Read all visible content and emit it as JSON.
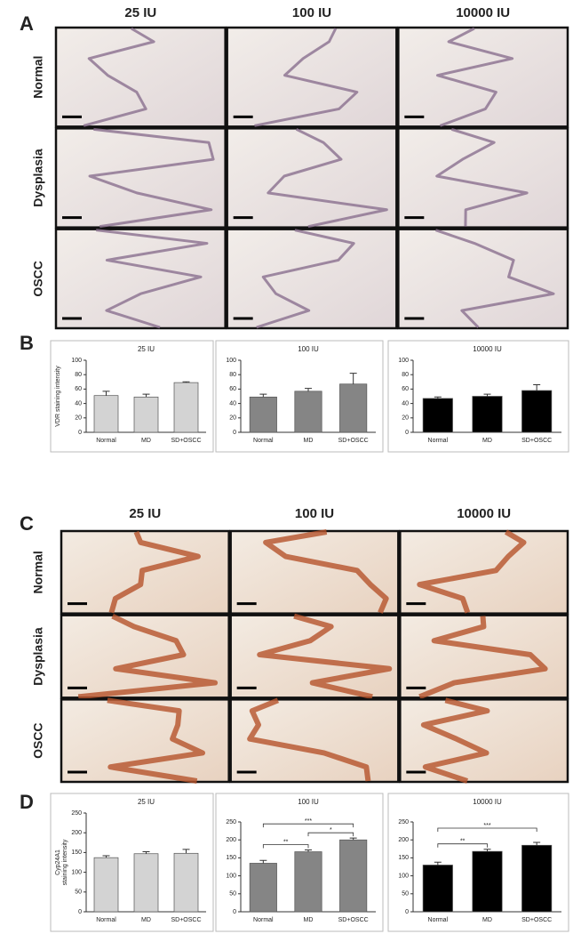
{
  "panels": [
    {
      "label": "A",
      "columns": [
        "25 IU",
        "100 IU",
        "10000 IU"
      ],
      "rows": [
        "Normal",
        "Dysplasia",
        "OSCC"
      ]
    },
    {
      "label": "C",
      "columns": [
        "25 IU",
        "100 IU",
        "10000 IU"
      ],
      "rows": [
        "Normal",
        "Dysplasia",
        "OSCC"
      ]
    }
  ],
  "figure_labels": [
    "B",
    "D"
  ],
  "chart_data": [
    {
      "type": "bar",
      "title": "25 IU",
      "ylabel": [
        "VDR staining intensity"
      ],
      "categories": [
        "Normal",
        "MD",
        "SD+OSCC"
      ],
      "values": [
        51,
        49,
        69
      ],
      "errors": [
        6,
        4,
        1
      ],
      "color": "#d3d3d3",
      "ylim": [
        0,
        100
      ],
      "yticks": [
        0,
        20,
        40,
        60,
        80,
        100
      ]
    },
    {
      "type": "bar",
      "title": "100 IU",
      "categories": [
        "Normal",
        "MD",
        "SD+OSCC"
      ],
      "values": [
        49,
        57,
        67
      ],
      "errors": [
        4,
        4,
        15
      ],
      "color": "#858585",
      "ylim": [
        0,
        100
      ],
      "yticks": [
        0,
        20,
        40,
        60,
        80,
        100
      ]
    },
    {
      "type": "bar",
      "title": "10000 IU",
      "categories": [
        "Normal",
        "MD",
        "SD+OSCC"
      ],
      "values": [
        47,
        50,
        58
      ],
      "errors": [
        2,
        3,
        8
      ],
      "color": "#000000",
      "ylim": [
        0,
        100
      ],
      "yticks": [
        0,
        20,
        40,
        60,
        80,
        100
      ]
    },
    {
      "type": "bar",
      "title": "25 IU",
      "ylabel": [
        "Cyp24A1",
        "staining intensity"
      ],
      "categories": [
        "Normal",
        "MD",
        "SD+OSCC"
      ],
      "values": [
        137,
        147,
        148
      ],
      "errors": [
        5,
        5,
        10
      ],
      "color": "#d3d3d3",
      "ylim": [
        0,
        250
      ],
      "yticks": [
        0,
        50,
        100,
        150,
        200,
        250
      ]
    },
    {
      "type": "bar",
      "title": "100 IU",
      "categories": [
        "Normal",
        "MD",
        "SD+OSCC"
      ],
      "values": [
        135,
        167,
        200
      ],
      "errors": [
        8,
        5,
        5
      ],
      "color": "#858585",
      "ylim": [
        0,
        250
      ],
      "yticks": [
        0,
        50,
        100,
        150,
        200,
        250
      ],
      "significance": [
        {
          "pair": [
            "Normal",
            "MD"
          ],
          "label": "**"
        },
        {
          "pair": [
            "Normal",
            "SD+OSCC"
          ],
          "label": "***"
        },
        {
          "pair": [
            "MD",
            "SD+OSCC"
          ],
          "label": "*"
        }
      ]
    },
    {
      "type": "bar",
      "title": "10000 IU",
      "categories": [
        "Normal",
        "MD",
        "SD+OSCC"
      ],
      "values": [
        130,
        168,
        185
      ],
      "errors": [
        8,
        6,
        8
      ],
      "color": "#000000",
      "ylim": [
        0,
        250
      ],
      "yticks": [
        0,
        50,
        100,
        150,
        200,
        250
      ],
      "significance": [
        {
          "pair": [
            "Normal",
            "MD"
          ],
          "label": "**"
        },
        {
          "pair": [
            "Normal",
            "SD+OSCC"
          ],
          "label": "***"
        }
      ]
    }
  ]
}
